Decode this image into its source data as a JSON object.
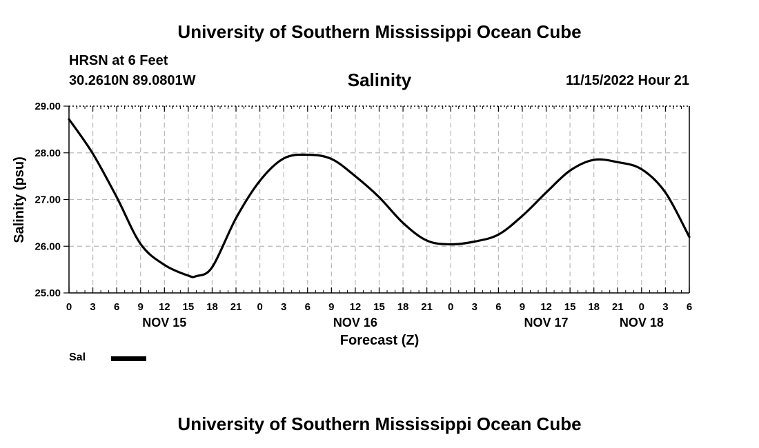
{
  "header": {
    "title": "University of Southern Mississippi Ocean Cube",
    "station": "HRSN at 6 Feet",
    "coords": "30.2610N  89.0801W",
    "chart_title": "Salinity",
    "datetime": "11/15/2022 Hour 21"
  },
  "footer": {
    "title": "University of Southern Mississippi Ocean Cube"
  },
  "legend": {
    "label": "Sal",
    "color": "#000000"
  },
  "chart_data": {
    "type": "line",
    "title": "Salinity",
    "xlabel": "Forecast (Z)",
    "ylabel": "Salinity (psu)",
    "ylim": [
      25.0,
      29.0
    ],
    "y_ticks": [
      "25.00",
      "26.00",
      "27.00",
      "28.00",
      "29.00"
    ],
    "x_tick_labels": [
      "0",
      "3",
      "6",
      "9",
      "12",
      "15",
      "18",
      "21",
      "0",
      "3",
      "6",
      "9",
      "12",
      "15",
      "18",
      "21",
      "0",
      "3",
      "6",
      "9",
      "12",
      "15",
      "18",
      "21",
      "0",
      "3",
      "6"
    ],
    "day_labels": [
      {
        "label": "NOV 15",
        "tick_index": 4
      },
      {
        "label": "NOV 16",
        "tick_index": 12
      },
      {
        "label": "NOV 17",
        "tick_index": 20
      },
      {
        "label": "NOV 18",
        "tick_index": 24
      }
    ],
    "grid": true,
    "series": [
      {
        "name": "Sal",
        "color": "#000000",
        "hours": [
          0,
          3,
          6,
          9,
          12,
          15,
          16,
          18,
          21,
          24,
          27,
          30,
          33,
          36,
          39,
          42,
          45,
          48,
          51,
          54,
          57,
          60,
          63,
          66,
          69,
          72,
          75,
          78
        ],
        "values": [
          28.72,
          27.98,
          27.05,
          26.05,
          25.6,
          25.37,
          25.36,
          25.55,
          26.6,
          27.4,
          27.88,
          27.96,
          27.87,
          27.5,
          27.05,
          26.5,
          26.12,
          26.04,
          26.1,
          26.25,
          26.65,
          27.15,
          27.62,
          27.85,
          27.8,
          27.65,
          27.15,
          26.2
        ]
      }
    ]
  }
}
